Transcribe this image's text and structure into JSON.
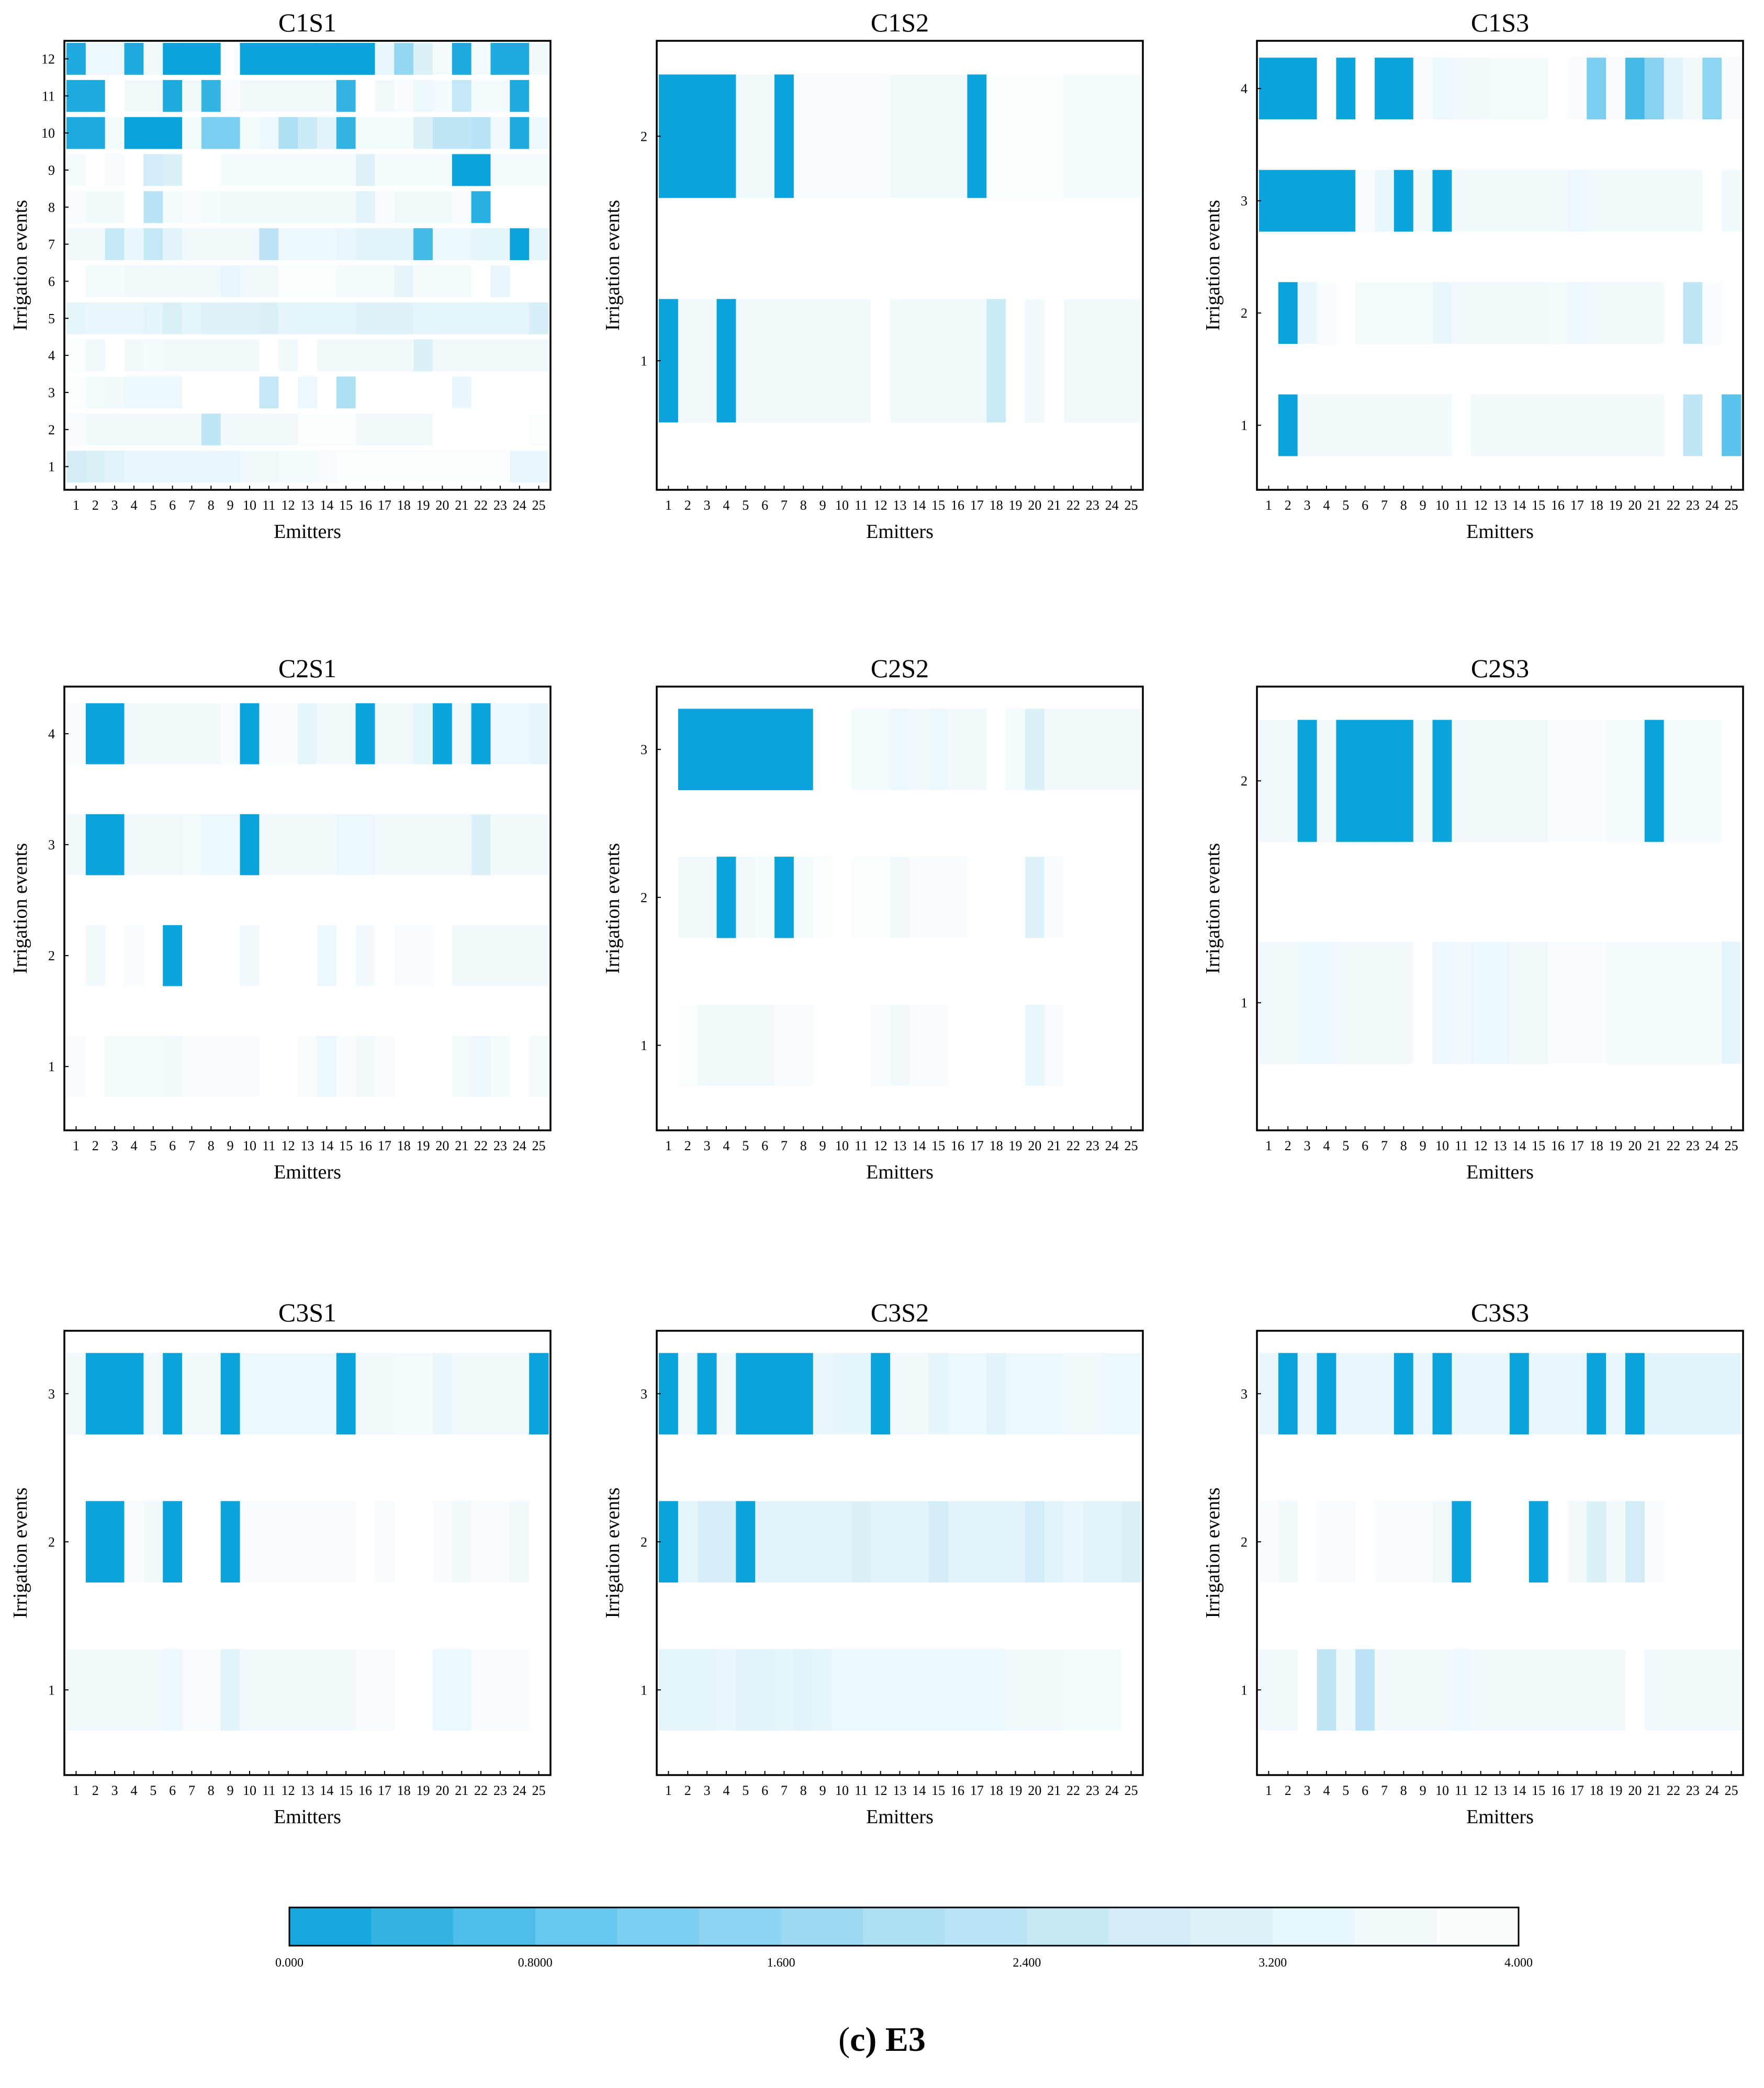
{
  "caption": {
    "open": "(",
    "letter": "c",
    "rest": ") E3"
  },
  "colors": {
    "scale": [
      "#0aa3dc",
      "#6ecaef",
      "#aedff3",
      "#dbf1f8",
      "#ffffff"
    ],
    "frame": "#000000"
  },
  "colorbar": {
    "min": 0,
    "max": 4,
    "tick_labels": [
      "0.000",
      "0.8000",
      "1.600",
      "2.400",
      "3.200",
      "4.000"
    ],
    "tick_values": [
      0,
      0.8,
      1.6,
      2.4,
      3.2,
      4.0
    ]
  },
  "chart_data": [
    {
      "type": "heatmap",
      "title": "C1S1",
      "xlabel": "Emitters",
      "ylabel": "Irrigation events",
      "x": [
        1,
        2,
        3,
        4,
        5,
        6,
        7,
        8,
        9,
        10,
        11,
        12,
        13,
        14,
        15,
        16,
        17,
        18,
        19,
        20,
        21,
        22,
        23,
        24,
        25
      ],
      "y": [
        1,
        2,
        3,
        4,
        5,
        6,
        7,
        8,
        9,
        10,
        11,
        12
      ],
      "values": [
        [
          2.8,
          3.0,
          3.2,
          3.4,
          3.4,
          3.4,
          3.4,
          3.4,
          3.4,
          3.6,
          3.6,
          3.7,
          3.7,
          3.8,
          3.9,
          3.9,
          3.9,
          3.9,
          3.9,
          3.9,
          3.9,
          3.9,
          3.9,
          3.4,
          3.4
        ],
        [
          3.8,
          3.6,
          3.6,
          3.6,
          3.6,
          3.6,
          3.6,
          2.4,
          3.6,
          3.6,
          3.6,
          3.6,
          3.9,
          3.9,
          3.9,
          3.6,
          3.6,
          3.6,
          3.6,
          4.0,
          4.0,
          4.0,
          4.0,
          4.0,
          3.9
        ],
        [
          3.9,
          3.7,
          3.6,
          3.5,
          3.5,
          3.5,
          4.0,
          4.0,
          4.0,
          4.0,
          2.5,
          4.0,
          3.5,
          4.0,
          2.0,
          4.0,
          4.0,
          4.0,
          4.0,
          4.0,
          3.4,
          4.0,
          4.0,
          4.0,
          4.0
        ],
        [
          3.9,
          3.6,
          4.0,
          3.6,
          3.7,
          3.6,
          3.6,
          3.6,
          3.6,
          3.6,
          4.0,
          3.6,
          4.0,
          3.6,
          3.6,
          3.6,
          3.6,
          3.6,
          3.0,
          3.6,
          3.6,
          3.6,
          3.6,
          3.6,
          3.6
        ],
        [
          3.3,
          3.4,
          3.4,
          3.4,
          3.3,
          3.0,
          3.3,
          3.1,
          3.1,
          3.1,
          3.0,
          3.3,
          3.3,
          3.3,
          3.3,
          3.1,
          3.1,
          3.1,
          3.3,
          3.3,
          3.3,
          3.3,
          3.3,
          3.3,
          2.9
        ],
        [
          4.0,
          3.7,
          3.7,
          3.6,
          3.6,
          3.6,
          3.6,
          3.6,
          3.4,
          3.6,
          3.6,
          3.9,
          3.9,
          3.9,
          3.7,
          3.7,
          3.7,
          3.3,
          3.7,
          3.7,
          3.7,
          4.0,
          3.4,
          4.0,
          4.0
        ],
        [
          3.6,
          3.6,
          2.5,
          3.4,
          2.5,
          3.2,
          3.6,
          3.6,
          3.6,
          3.6,
          2.3,
          3.5,
          3.5,
          3.5,
          3.4,
          3.2,
          3.2,
          3.2,
          0.6,
          3.5,
          3.5,
          3.3,
          3.3,
          0.0,
          3.3
        ],
        [
          3.8,
          3.6,
          3.6,
          4.0,
          2.2,
          3.7,
          3.8,
          3.7,
          3.6,
          3.6,
          3.6,
          3.6,
          3.6,
          3.6,
          3.6,
          3.2,
          3.8,
          3.6,
          3.6,
          3.6,
          3.8,
          0.3,
          4.0,
          4.0,
          4.0
        ],
        [
          3.7,
          4.0,
          3.8,
          4.0,
          2.8,
          3.0,
          4.0,
          4.0,
          3.7,
          3.7,
          3.7,
          3.7,
          3.7,
          3.7,
          3.7,
          3.1,
          3.7,
          3.7,
          3.7,
          3.7,
          0.0,
          0.0,
          3.7,
          3.7,
          3.7
        ],
        [
          0.2,
          0.2,
          3.7,
          0.0,
          0.0,
          0.0,
          3.7,
          1.2,
          1.2,
          3.7,
          3.5,
          2.0,
          2.6,
          3.2,
          0.4,
          3.7,
          3.7,
          3.7,
          3.0,
          2.4,
          2.4,
          2.2,
          3.6,
          0.2,
          3.5
        ],
        [
          0.2,
          0.2,
          4.0,
          3.6,
          3.6,
          0.2,
          3.6,
          0.4,
          3.8,
          3.6,
          3.6,
          3.6,
          3.6,
          3.6,
          0.4,
          4.0,
          3.6,
          3.8,
          3.5,
          3.7,
          2.5,
          3.7,
          3.7,
          0.2,
          4.0
        ],
        [
          0.2,
          3.5,
          3.5,
          0.2,
          3.6,
          0.0,
          0.0,
          0.0,
          4.0,
          0.0,
          0.0,
          0.0,
          0.0,
          0.0,
          0.0,
          0.0,
          3.4,
          1.6,
          3.0,
          3.7,
          0.2,
          3.7,
          0.2,
          0.2,
          3.6
        ]
      ]
    },
    {
      "type": "heatmap",
      "title": "C1S2",
      "xlabel": "Emitters",
      "ylabel": "Irrigation events",
      "x": [
        1,
        2,
        3,
        4,
        5,
        6,
        7,
        8,
        9,
        10,
        11,
        12,
        13,
        14,
        15,
        16,
        17,
        18,
        19,
        20,
        21,
        22,
        23,
        24,
        25
      ],
      "y": [
        1,
        2
      ],
      "values": [
        [
          0.0,
          3.6,
          3.6,
          0.0,
          3.6,
          3.6,
          3.6,
          3.6,
          3.6,
          3.6,
          3.6,
          4.0,
          3.6,
          3.6,
          3.6,
          3.6,
          3.6,
          2.6,
          4.0,
          3.6,
          4.0,
          3.6,
          3.6,
          3.6,
          3.6
        ],
        [
          0.0,
          0.0,
          0.0,
          0.0,
          3.6,
          3.6,
          0.0,
          3.8,
          3.8,
          3.8,
          3.8,
          3.8,
          3.6,
          3.6,
          3.6,
          3.6,
          0.0,
          3.9,
          3.9,
          3.9,
          3.9,
          3.7,
          3.7,
          3.7,
          3.7
        ]
      ]
    },
    {
      "type": "heatmap",
      "title": "C1S3",
      "xlabel": "Emitters",
      "ylabel": "Irrigation events",
      "x": [
        1,
        2,
        3,
        4,
        5,
        6,
        7,
        8,
        9,
        10,
        11,
        12,
        13,
        14,
        15,
        16,
        17,
        18,
        19,
        20,
        21,
        22,
        23,
        24,
        25
      ],
      "y": [
        1,
        2,
        3,
        4
      ],
      "values": [
        [
          4.0,
          0.0,
          3.6,
          3.6,
          3.6,
          3.6,
          3.6,
          3.6,
          3.6,
          3.6,
          4.0,
          3.6,
          3.6,
          3.6,
          3.6,
          3.6,
          3.6,
          3.6,
          3.6,
          3.6,
          3.6,
          4.0,
          2.4,
          4.0,
          0.8
        ],
        [
          4.0,
          0.0,
          3.4,
          3.8,
          4.0,
          3.7,
          3.7,
          3.7,
          3.7,
          3.4,
          3.6,
          3.6,
          3.6,
          3.6,
          3.6,
          3.7,
          3.5,
          3.6,
          3.6,
          3.6,
          3.6,
          4.0,
          2.4,
          3.8,
          4.0
        ],
        [
          0.0,
          0.0,
          0.0,
          0.0,
          0.0,
          3.8,
          3.4,
          0.0,
          3.6,
          0.0,
          3.6,
          3.6,
          3.6,
          3.6,
          3.6,
          3.6,
          3.5,
          3.6,
          3.6,
          3.6,
          3.6,
          3.6,
          3.6,
          4.0,
          3.6
        ],
        [
          0.0,
          0.0,
          0.0,
          4.0,
          0.0,
          4.0,
          0.0,
          0.0,
          3.8,
          3.5,
          3.6,
          3.6,
          3.7,
          3.7,
          3.7,
          4.0,
          3.8,
          1.2,
          3.8,
          0.6,
          1.4,
          3.2,
          3.6,
          1.5,
          3.8
        ]
      ]
    },
    {
      "type": "heatmap",
      "title": "C2S1",
      "xlabel": "Emitters",
      "ylabel": "Irrigation events",
      "x": [
        1,
        2,
        3,
        4,
        5,
        6,
        7,
        8,
        9,
        10,
        11,
        12,
        13,
        14,
        15,
        16,
        17,
        18,
        19,
        20,
        21,
        22,
        23,
        24,
        25
      ],
      "y": [
        1,
        2,
        3,
        4
      ],
      "values": [
        [
          3.8,
          4.0,
          3.7,
          3.7,
          3.7,
          3.6,
          3.8,
          3.8,
          3.8,
          3.8,
          4.0,
          4.0,
          3.8,
          3.5,
          3.8,
          3.6,
          3.8,
          4.0,
          4.0,
          4.0,
          3.7,
          3.5,
          3.7,
          4.0,
          3.7
        ],
        [
          4.0,
          3.6,
          4.0,
          3.8,
          4.0,
          0.0,
          4.0,
          4.0,
          4.0,
          3.6,
          4.0,
          4.0,
          4.0,
          3.5,
          4.0,
          3.6,
          4.0,
          3.8,
          3.8,
          4.0,
          3.6,
          3.6,
          3.6,
          3.6,
          3.6
        ],
        [
          3.6,
          0.0,
          0.0,
          3.6,
          3.6,
          3.6,
          3.7,
          3.5,
          3.5,
          0.0,
          3.6,
          3.6,
          3.6,
          3.6,
          3.5,
          3.5,
          3.6,
          3.6,
          3.6,
          3.6,
          3.6,
          3.0,
          3.6,
          3.6,
          3.6
        ],
        [
          3.8,
          0.0,
          0.0,
          3.6,
          3.6,
          3.6,
          3.6,
          3.6,
          3.8,
          0.0,
          3.8,
          3.8,
          3.3,
          3.6,
          3.6,
          0.0,
          3.6,
          3.6,
          3.3,
          0.0,
          3.6,
          0.0,
          3.5,
          3.5,
          3.3
        ]
      ]
    },
    {
      "type": "heatmap",
      "title": "C2S2",
      "xlabel": "Emitters",
      "ylabel": "Irrigation events",
      "x": [
        1,
        2,
        3,
        4,
        5,
        6,
        7,
        8,
        9,
        10,
        11,
        12,
        13,
        14,
        15,
        16,
        17,
        18,
        19,
        20,
        21,
        22,
        23,
        24,
        25
      ],
      "y": [
        1,
        2,
        3
      ],
      "values": [
        [
          4.0,
          3.9,
          3.6,
          3.6,
          3.6,
          3.6,
          3.8,
          3.8,
          4.0,
          4.0,
          4.0,
          3.8,
          3.6,
          3.8,
          3.8,
          4.0,
          4.0,
          4.0,
          4.0,
          3.4,
          3.8,
          4.0,
          4.0,
          4.0,
          4.0
        ],
        [
          4.0,
          3.6,
          3.6,
          0.0,
          3.6,
          3.7,
          0.0,
          3.7,
          3.9,
          4.0,
          3.9,
          3.9,
          3.6,
          3.8,
          3.8,
          3.8,
          4.0,
          4.0,
          4.0,
          3.1,
          3.8,
          4.0,
          4.0,
          4.0,
          4.0
        ],
        [
          4.0,
          0.0,
          0.0,
          0.0,
          0.0,
          0.0,
          0.0,
          0.0,
          4.0,
          4.0,
          3.7,
          3.7,
          3.5,
          3.6,
          3.5,
          3.6,
          3.6,
          4.0,
          3.7,
          3.0,
          3.6,
          3.6,
          3.6,
          3.6,
          3.6
        ]
      ]
    },
    {
      "type": "heatmap",
      "title": "C2S3",
      "xlabel": "Emitters",
      "ylabel": "Irrigation events",
      "x": [
        1,
        2,
        3,
        4,
        5,
        6,
        7,
        8,
        9,
        10,
        11,
        12,
        13,
        14,
        15,
        16,
        17,
        18,
        19,
        20,
        21,
        22,
        23,
        24,
        25
      ],
      "y": [
        1,
        2
      ],
      "values": [
        [
          3.6,
          3.6,
          3.5,
          3.5,
          3.6,
          3.6,
          3.6,
          3.6,
          4.0,
          3.5,
          3.6,
          3.5,
          3.5,
          3.6,
          3.6,
          3.8,
          3.8,
          3.8,
          3.7,
          3.7,
          3.7,
          3.7,
          3.7,
          3.7,
          3.3
        ],
        [
          3.6,
          3.6,
          0.0,
          3.6,
          0.0,
          0.0,
          0.0,
          0.0,
          3.6,
          0.0,
          3.6,
          3.6,
          3.6,
          3.6,
          3.6,
          3.8,
          3.8,
          3.8,
          3.7,
          3.7,
          0.0,
          3.7,
          3.7,
          3.7,
          4.0
        ]
      ]
    },
    {
      "type": "heatmap",
      "title": "C3S1",
      "xlabel": "Emitters",
      "ylabel": "Irrigation events",
      "x": [
        1,
        2,
        3,
        4,
        5,
        6,
        7,
        8,
        9,
        10,
        11,
        12,
        13,
        14,
        15,
        16,
        17,
        18,
        19,
        20,
        21,
        22,
        23,
        24,
        25
      ],
      "y": [
        1,
        2,
        3
      ],
      "values": [
        [
          3.6,
          3.6,
          3.6,
          3.6,
          3.6,
          3.5,
          3.8,
          3.8,
          3.2,
          3.6,
          3.6,
          3.6,
          3.6,
          3.6,
          3.6,
          3.8,
          3.8,
          4.0,
          4.0,
          3.5,
          3.5,
          3.8,
          3.8,
          3.8,
          4.0
        ],
        [
          4.0,
          0.0,
          0.0,
          3.8,
          3.6,
          0.0,
          4.0,
          4.0,
          0.0,
          3.8,
          3.8,
          3.8,
          3.8,
          3.8,
          3.8,
          4.0,
          3.8,
          4.0,
          4.0,
          3.8,
          3.6,
          3.8,
          3.8,
          3.6,
          4.0
        ],
        [
          3.6,
          0.0,
          0.0,
          0.0,
          3.6,
          0.0,
          3.6,
          3.6,
          0.0,
          3.5,
          3.5,
          3.5,
          3.5,
          3.5,
          0.0,
          3.6,
          3.6,
          3.7,
          3.7,
          3.4,
          3.6,
          3.6,
          3.6,
          3.6,
          0.0
        ]
      ]
    },
    {
      "type": "heatmap",
      "title": "C3S2",
      "xlabel": "Emitters",
      "ylabel": "Irrigation events",
      "x": [
        1,
        2,
        3,
        4,
        5,
        6,
        7,
        8,
        9,
        10,
        11,
        12,
        13,
        14,
        15,
        16,
        17,
        18,
        19,
        20,
        21,
        22,
        23,
        24,
        25
      ],
      "y": [
        1,
        2,
        3
      ],
      "values": [
        [
          3.3,
          3.3,
          3.3,
          3.4,
          3.2,
          3.2,
          3.3,
          3.2,
          3.3,
          3.5,
          3.5,
          3.5,
          3.5,
          3.5,
          3.5,
          3.5,
          3.5,
          3.5,
          3.6,
          3.6,
          3.6,
          3.7,
          3.7,
          3.7,
          4.0
        ],
        [
          0.0,
          3.3,
          2.9,
          2.9,
          0.0,
          3.2,
          3.2,
          3.2,
          3.2,
          3.2,
          3.0,
          3.2,
          3.2,
          3.2,
          2.8,
          3.2,
          3.2,
          3.2,
          3.2,
          2.8,
          3.2,
          3.4,
          3.2,
          3.2,
          3.0
        ],
        [
          0.0,
          3.6,
          0.0,
          3.6,
          0.0,
          0.0,
          0.0,
          0.0,
          3.4,
          3.3,
          3.3,
          0.0,
          3.6,
          3.6,
          3.3,
          3.5,
          3.5,
          3.2,
          3.5,
          3.5,
          3.5,
          3.6,
          3.6,
          3.5,
          3.5
        ]
      ]
    },
    {
      "type": "heatmap",
      "title": "C3S3",
      "xlabel": "Emitters",
      "ylabel": "Irrigation events",
      "x": [
        1,
        2,
        3,
        4,
        5,
        6,
        7,
        8,
        9,
        10,
        11,
        12,
        13,
        14,
        15,
        16,
        17,
        18,
        19,
        20,
        21,
        22,
        23,
        24,
        25
      ],
      "y": [
        1,
        2,
        3
      ],
      "values": [
        [
          3.6,
          3.6,
          4.0,
          2.4,
          3.6,
          2.3,
          3.6,
          3.6,
          3.6,
          3.6,
          3.5,
          3.6,
          3.6,
          3.6,
          3.6,
          3.6,
          3.6,
          3.6,
          3.6,
          4.0,
          3.6,
          3.6,
          3.6,
          3.6,
          3.6
        ],
        [
          3.8,
          3.6,
          4.0,
          3.8,
          3.8,
          4.0,
          3.8,
          3.8,
          3.8,
          3.6,
          0.0,
          4.0,
          4.0,
          4.0,
          0.0,
          4.0,
          3.6,
          3.0,
          3.6,
          2.8,
          3.8,
          4.0,
          4.0,
          4.0,
          4.0
        ],
        [
          3.4,
          0.0,
          3.4,
          0.0,
          3.4,
          3.4,
          3.4,
          0.0,
          3.4,
          0.0,
          3.4,
          3.4,
          3.4,
          0.0,
          3.4,
          3.4,
          3.4,
          0.0,
          3.4,
          0.0,
          3.2,
          3.2,
          3.2,
          3.2,
          3.2
        ]
      ]
    }
  ]
}
